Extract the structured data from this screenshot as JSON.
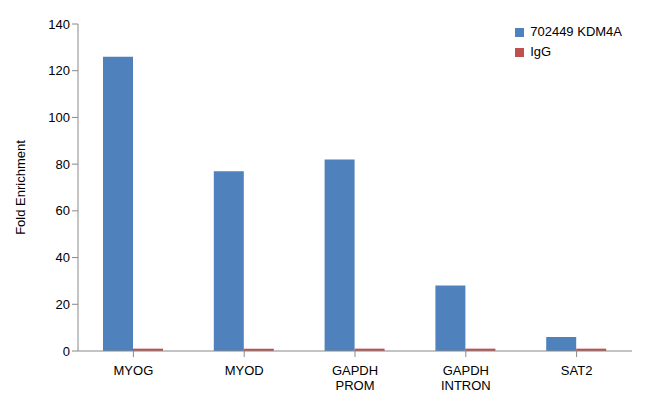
{
  "chart_data": {
    "type": "bar",
    "y_label": "Fold Enrichment",
    "categories": [
      "MYOG",
      "MYOD",
      "GAPDH PROM",
      "GAPDH INTRON",
      "SAT2"
    ],
    "series": [
      {
        "name": "702449 KDM4A",
        "color": "#4f81bd",
        "values": [
          126,
          77,
          82,
          28,
          6
        ]
      },
      {
        "name": "IgG",
        "color": "#c0504d",
        "values": [
          1,
          1,
          1,
          1,
          1
        ]
      }
    ],
    "ylim": [
      0,
      140
    ],
    "yticks": [
      0,
      20,
      40,
      60,
      80,
      100,
      120,
      140
    ],
    "grid": false,
    "legend": "upper right"
  }
}
